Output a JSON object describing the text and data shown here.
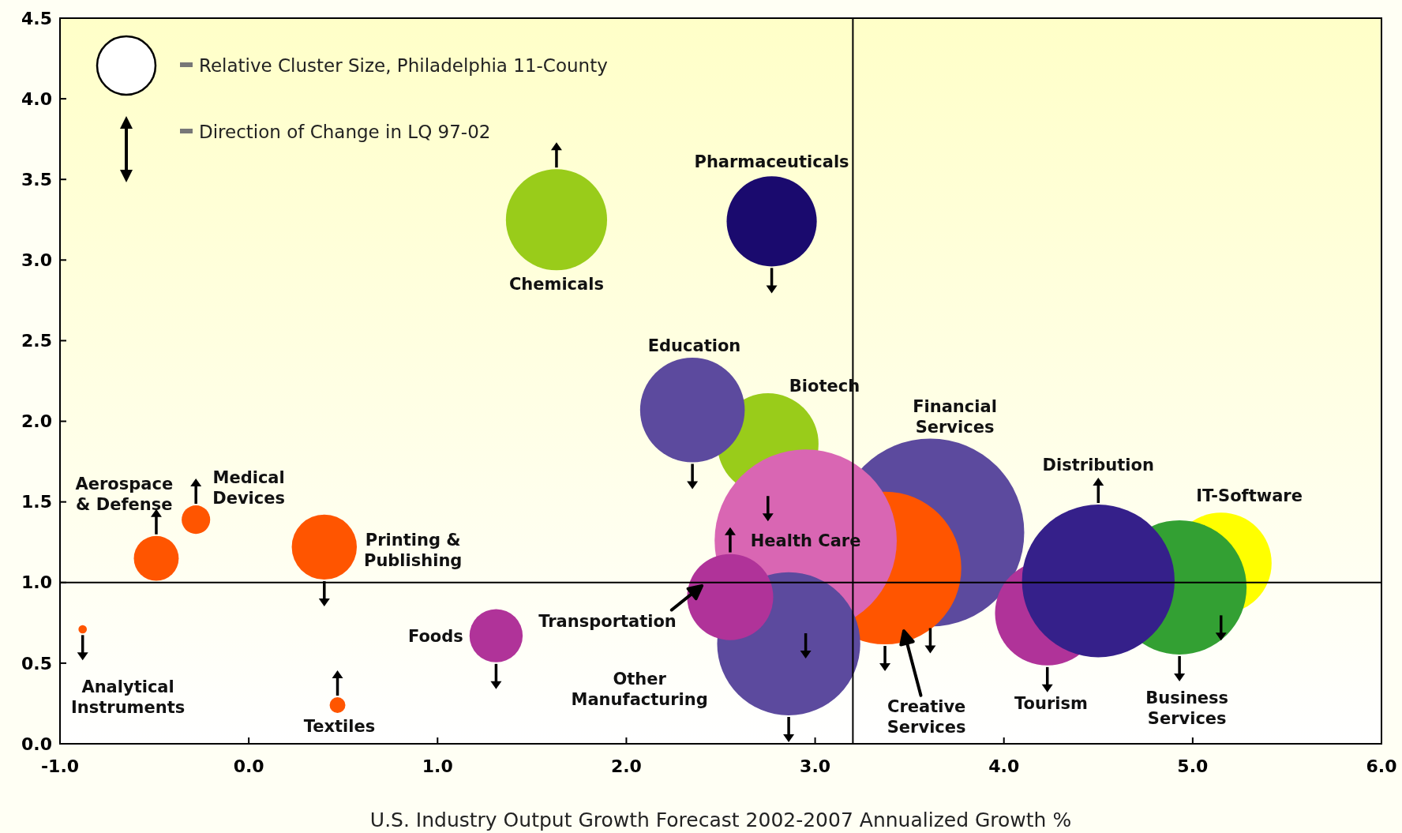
{
  "chart_data": {
    "type": "bubble",
    "xlabel": "U.S. Industry Output Growth Forecast 2002-2007 Annualized Growth %",
    "xlim": [
      -1,
      6
    ],
    "xticks": [
      {
        "value": -1,
        "label": "-1.0"
      },
      {
        "value": 0,
        "label": "0.0"
      },
      {
        "value": 1,
        "label": "1.0"
      },
      {
        "value": 2,
        "label": "2.0"
      },
      {
        "value": 3,
        "label": "3.0"
      },
      {
        "value": 4,
        "label": "4.0"
      },
      {
        "value": 5,
        "label": "5.0"
      },
      {
        "value": 6,
        "label": "6.0"
      }
    ],
    "ylim": [
      0,
      4.5
    ],
    "yticks": [
      {
        "value": 0,
        "label": "0.0"
      },
      {
        "value": 0.5,
        "label": "0.5"
      },
      {
        "value": 1,
        "label": "1.0"
      },
      {
        "value": 1.5,
        "label": "1.5"
      },
      {
        "value": 2,
        "label": "2.0"
      },
      {
        "value": 2.5,
        "label": "2.5"
      },
      {
        "value": 3,
        "label": "3.0"
      },
      {
        "value": 3.5,
        "label": "3.5"
      },
      {
        "value": 4,
        "label": "4.0"
      },
      {
        "value": 4.5,
        "label": "4.5"
      }
    ],
    "grid": false,
    "ref_lines": [
      {
        "axis": "y",
        "value": 1,
        "color": "#000000"
      },
      {
        "axis": "x",
        "value": 3.2,
        "color": "#000000"
      }
    ],
    "series": [
      {
        "x": [
          2.75,
          2.35,
          2.77,
          3.61,
          3.37,
          2.95,
          2.86,
          4.23,
          5.15,
          4.93,
          1.31,
          0.4,
          -0.88
        ],
        "values": [
          1.86,
          2.07,
          3.24,
          1.31,
          1.09,
          1.26,
          0.62,
          0.81,
          1.12,
          0.97,
          0.67,
          1.22,
          0.71
        ],
        "sizes": [
          0.29,
          0.31,
          0.23,
          1.0,
          0.66,
          0.94,
          0.58,
          0.31,
          0.29,
          0.51,
          0.08,
          0.12,
          0.002
        ],
        "colors": [
          "#99cc1a",
          "#5c4a9e",
          "#1a0a6e",
          "#5c4a9e",
          "#ff5500",
          "#d966b3",
          "#5c4a9e",
          "#b03399",
          "#ffff00",
          "#33a033",
          "#b03399",
          "#ff5500",
          "#ff5500"
        ]
      },
      {
        "x": [
          1.63,
          2.55,
          4.5,
          -0.49,
          -0.28,
          0.47
        ],
        "values": [
          3.25,
          0.91,
          1.01,
          1.15,
          1.39,
          0.24
        ],
        "sizes": [
          0.29,
          0.21,
          0.66,
          0.057,
          0.023,
          0.007
        ],
        "colors": [
          "#99cc1a",
          "#b03399",
          "#35208a",
          "#ff5500",
          "#ff5500",
          "#ff5500"
        ]
      }
    ],
    "annotations": [
      "Relative Cluster Size, Philadelphia 11-County",
      "Direction of Change in LQ 97-02",
      "Chemicals",
      "Pharmaceuticals",
      "Education",
      "Biotech",
      "Financial\nServices",
      "Distribution",
      "IT-Software",
      "Health Care",
      "Transportation",
      "Other\nManufacturing",
      "Creative\nServices",
      "Tourism",
      "Business\nServices",
      "Foods",
      "Printing &\nPublishing",
      "Aerospace\n& Defense",
      "Medical\nDevices",
      "Analytical\nInstruments",
      "Textiles"
    ]
  }
}
